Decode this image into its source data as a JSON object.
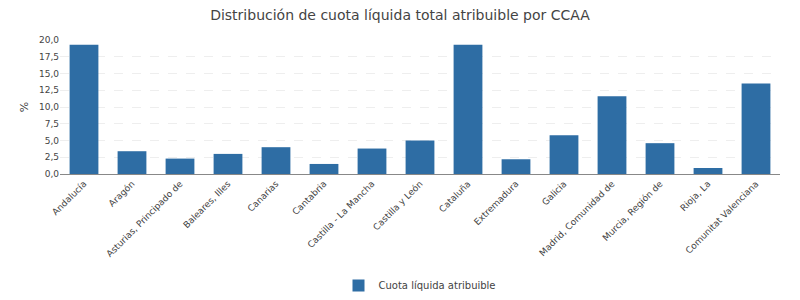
{
  "chart_data": {
    "type": "bar",
    "title": "Distribución de cuota líquida total atribuible por CCAA",
    "categories": [
      "Andalucía",
      "Aragón",
      "Asturias, Principado de",
      "Baleares, Illes",
      "Canarias",
      "Cantabria",
      "Castilla - La Mancha",
      "Castilla y León",
      "Cataluña",
      "Extremadura",
      "Galicia",
      "Madrid, Comunidad de",
      "Murcia, Región de",
      "Rioja, La",
      "Comunitat Valenciana"
    ],
    "series": [
      {
        "name": "Cuota líquida atribuible",
        "color": "#2e6da4",
        "values": [
          19.3,
          3.4,
          2.3,
          3.0,
          4.0,
          1.5,
          3.8,
          5.0,
          19.3,
          2.2,
          5.8,
          11.6,
          4.6,
          0.9,
          13.5
        ]
      }
    ],
    "ylabel": "%",
    "ylim": [
      0,
      20.0
    ],
    "yticks": [
      {
        "value": 0.0,
        "label": "0,0"
      },
      {
        "value": 2.5,
        "label": "2,5"
      },
      {
        "value": 5.0,
        "label": "5,0"
      },
      {
        "value": 7.5,
        "label": "7,5"
      },
      {
        "value": 10.0,
        "label": "10,0"
      },
      {
        "value": 12.5,
        "label": "12,5"
      },
      {
        "value": 15.0,
        "label": "15,0"
      },
      {
        "value": 17.5,
        "label": "17,5"
      },
      {
        "value": 20.0,
        "label": "20,0"
      }
    ],
    "grid": true,
    "legend": "bottom"
  }
}
